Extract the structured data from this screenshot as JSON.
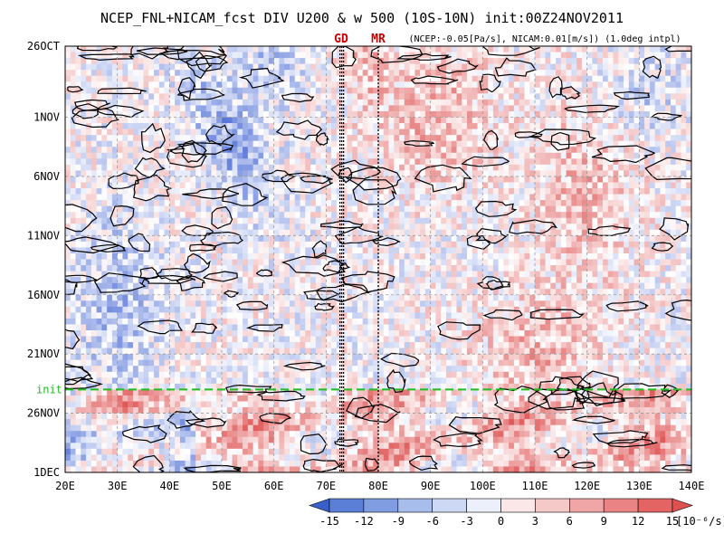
{
  "chart_data": {
    "type": "heatmap",
    "title": "NCEP_FNL+NICAM_fcst DIV U200 & w 500 (10S-10N) init:00Z24NOV2011",
    "subtitle": "(NCEP:-0.05[Pa/s], NICAM:0.01[m/s]) (1.0deg intpl)",
    "x_axis": {
      "ticks": [
        "20E",
        "30E",
        "40E",
        "50E",
        "60E",
        "70E",
        "80E",
        "90E",
        "100E",
        "110E",
        "120E",
        "130E",
        "140E"
      ],
      "range_deg_east": [
        20,
        140
      ]
    },
    "y_axis": {
      "ticks": [
        "26OCT",
        "1NOV",
        "6NOV",
        "11NOV",
        "16NOV",
        "21NOV",
        "26NOV",
        "1DEC"
      ],
      "range_days_from_26OCT": [
        0,
        36
      ]
    },
    "init_line": {
      "label": "init",
      "date": "24NOV2011",
      "day": 29,
      "color": "#22bb22"
    },
    "vertical_lines": [
      {
        "label": "GD",
        "lon": 73
      },
      {
        "label": "MR",
        "lon": 80
      }
    ],
    "colorbar": {
      "ticks": [
        "-15",
        "-12",
        "-9",
        "-6",
        "-3",
        "0",
        "3",
        "6",
        "9",
        "12",
        "15"
      ],
      "unit": "[10⁻⁶/s]",
      "colors": [
        "#3b5fc8",
        "#5b7fd6",
        "#7f9de0",
        "#a7bdec",
        "#cdd8f4",
        "#ecf0fb",
        "#fbe7e7",
        "#f6c9c9",
        "#f0a6a6",
        "#ea8484",
        "#e46464",
        "#df5050"
      ]
    },
    "contours": "w 500 ascent",
    "palette": {
      "neg": "#4f6fd6",
      "pos": "#e05a5a",
      "grid": "#9a9a9a"
    }
  }
}
